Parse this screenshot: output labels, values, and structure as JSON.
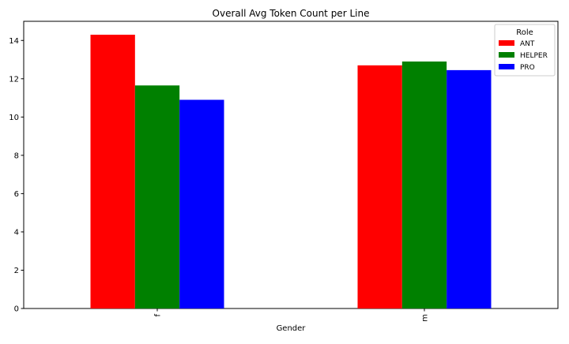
{
  "chart_data": {
    "type": "bar",
    "title": "Overall Avg Token Count per Line",
    "xlabel": "Gender",
    "ylabel": "",
    "categories": [
      "f",
      "m"
    ],
    "series": [
      {
        "name": "ANT",
        "values": [
          14.3,
          12.7
        ]
      },
      {
        "name": "HELPER",
        "values": [
          11.65,
          12.9
        ]
      },
      {
        "name": "PRO",
        "values": [
          10.9,
          12.45
        ]
      }
    ],
    "ylim": [
      0,
      15
    ],
    "yticks": [
      0,
      2,
      4,
      6,
      8,
      10,
      12,
      14
    ],
    "grid": false,
    "legend": {
      "title": "Role",
      "placement": "top-right"
    }
  },
  "colors": {
    "ANT": "#ff0000",
    "HELPER": "#008000",
    "PRO": "#0000ff"
  }
}
